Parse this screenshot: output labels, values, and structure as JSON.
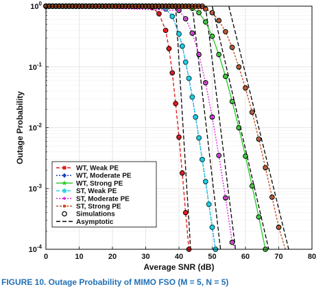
{
  "caption": "FIGURE 10.  Outage Probability of MIMO FSO (M = 5, N = 5)",
  "chart_data": {
    "type": "line",
    "title": "",
    "xlabel": "Average SNR (dB)",
    "ylabel": "Outage Probability",
    "xlim": [
      0,
      80
    ],
    "ylim": [
      0.0001,
      1
    ],
    "yscale": "log",
    "grid": true,
    "legend_position": "bottom-left",
    "x_ticks": [
      "0",
      "10",
      "20",
      "30",
      "40",
      "50",
      "60",
      "70",
      "80"
    ],
    "y_ticks": [
      {
        "base": "10",
        "exp": "0",
        "value": 1
      },
      {
        "base": "10",
        "exp": "-1",
        "value": 0.1
      },
      {
        "base": "10",
        "exp": "-2",
        "value": 0.01
      },
      {
        "base": "10",
        "exp": "-3",
        "value": 0.001
      },
      {
        "base": "10",
        "exp": "-4",
        "value": 0.0001
      }
    ],
    "series": [
      {
        "name": "WT, Weak PE",
        "color": "#e41a1c",
        "dash": "5,3",
        "marker": "square",
        "x": [
          32,
          34,
          36,
          37,
          38,
          39,
          40,
          41,
          42,
          43
        ],
        "y": [
          0.95,
          0.75,
          0.4,
          0.2,
          0.08,
          0.025,
          0.007,
          0.0018,
          0.0004,
          0.0001
        ]
      },
      {
        "name": "WT, Moderate PE",
        "color": "#1f3fbf",
        "dash": "2,2",
        "marker": "diamond",
        "x": [
          34,
          36,
          38,
          40,
          41,
          42,
          43,
          44,
          45,
          46,
          47,
          48,
          49,
          50,
          51,
          52
        ],
        "y": [
          0.98,
          0.9,
          0.68,
          0.35,
          0.22,
          0.12,
          0.065,
          0.032,
          0.015,
          0.0068,
          0.003,
          0.0013,
          0.00055,
          0.00023,
          0.0001,
          4e-05
        ]
      },
      {
        "name": "WT, Strong PE",
        "color": "#2ecc2e",
        "dash": "none",
        "marker": "star",
        "x": [
          44,
          46,
          48,
          50,
          52,
          54,
          56,
          58,
          60,
          62,
          64,
          66
        ],
        "y": [
          0.92,
          0.78,
          0.55,
          0.32,
          0.16,
          0.07,
          0.027,
          0.01,
          0.0034,
          0.0011,
          0.00034,
          0.0001
        ]
      },
      {
        "name": "ST, Weak PE",
        "color": "#22d3e6",
        "dash": "5,3",
        "marker": "asterisk",
        "x": [
          34,
          36,
          38,
          40,
          41,
          42,
          43,
          44,
          45,
          46,
          47,
          48,
          49,
          50,
          51,
          52
        ],
        "y": [
          0.98,
          0.9,
          0.68,
          0.35,
          0.22,
          0.12,
          0.065,
          0.032,
          0.015,
          0.0068,
          0.003,
          0.0013,
          0.00055,
          0.00023,
          0.0001,
          4e-05
        ]
      },
      {
        "name": "ST, Moderate PE",
        "color": "#e020e0",
        "dash": "2,2",
        "marker": "dot",
        "x": [
          40,
          42,
          44,
          46,
          48,
          50,
          52,
          54,
          56,
          57
        ],
        "y": [
          0.85,
          0.62,
          0.36,
          0.16,
          0.055,
          0.015,
          0.0035,
          0.0007,
          0.00013,
          5e-05
        ]
      },
      {
        "name": "ST, Strong PE",
        "color": "#c8501e",
        "dash": "3,2",
        "marker": "square-small",
        "x": [
          48,
          50,
          52,
          54,
          56,
          58,
          60,
          62,
          64,
          66,
          68,
          70,
          72
        ],
        "y": [
          0.9,
          0.78,
          0.58,
          0.38,
          0.21,
          0.1,
          0.045,
          0.018,
          0.0065,
          0.0022,
          0.00072,
          0.00023,
          7e-05
        ]
      },
      {
        "name": "Simulations",
        "color": "#000000",
        "dash": "none",
        "marker": "circle-only",
        "x": [],
        "y": []
      },
      {
        "name": "Asymptotic",
        "color": "#000000",
        "dash": "6,3",
        "marker": "none",
        "x": [],
        "y": []
      }
    ],
    "asymptotes": [
      {
        "x": [
          39,
          43.5
        ],
        "y": [
          1,
          0.0001
        ]
      },
      {
        "x": [
          44,
          52.5
        ],
        "y": [
          1,
          0.0001
        ]
      },
      {
        "x": [
          50,
          67
        ],
        "y": [
          1,
          0.0001
        ]
      },
      {
        "x": [
          48,
          57
        ],
        "y": [
          1,
          0.0001
        ]
      },
      {
        "x": [
          55,
          73
        ],
        "y": [
          1,
          0.0001
        ]
      }
    ]
  }
}
